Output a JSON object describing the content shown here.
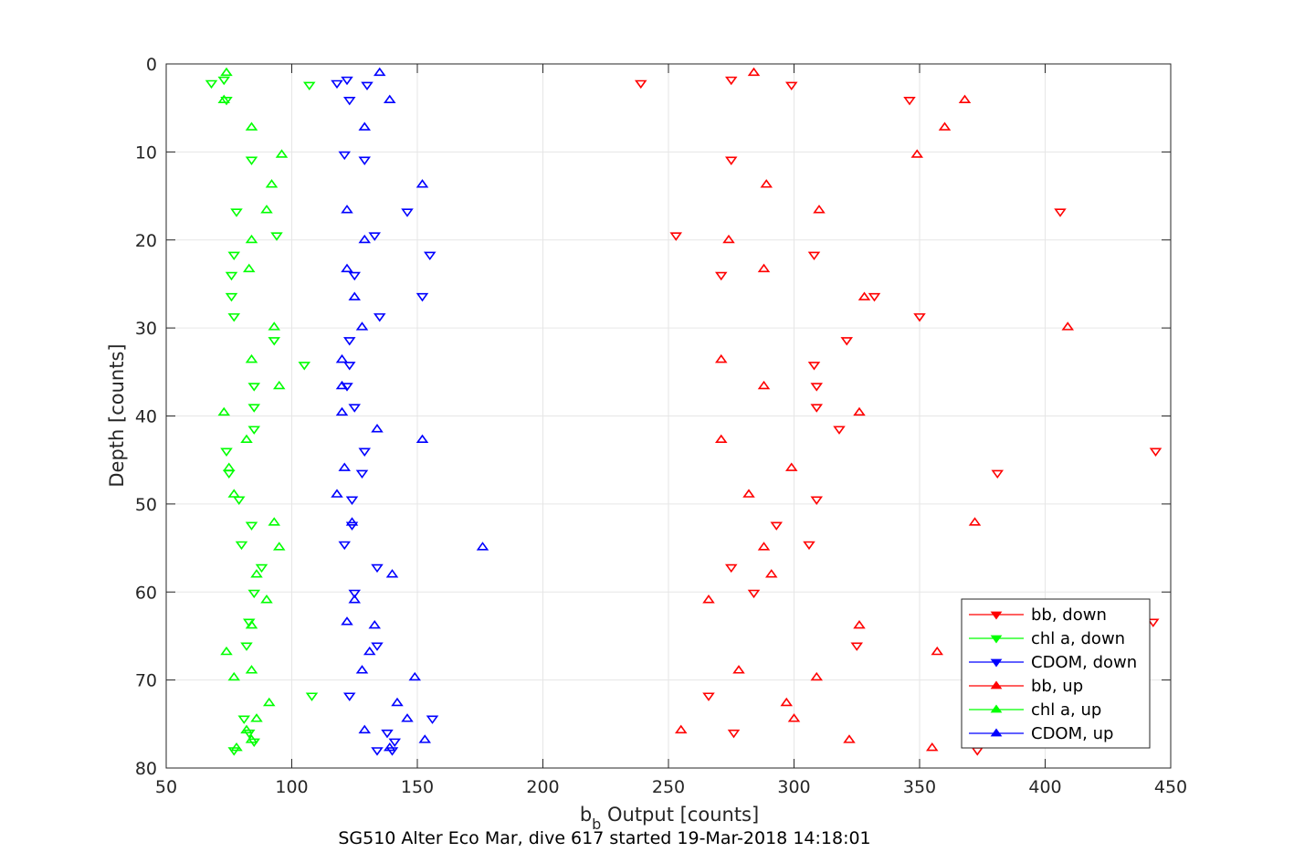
{
  "chart_data": {
    "type": "scatter",
    "title": "",
    "xlabel": "b_b Output [counts]",
    "xlabel_main": "b",
    "xlabel_sub": "b",
    "xlabel_rest": " Output [counts]",
    "ylabel": "Depth [counts]",
    "caption": "SG510 Alter Eco Mar, dive 617 started 19-Mar-2018 14:18:01",
    "xlim": [
      50,
      450
    ],
    "ylim": [
      0,
      80
    ],
    "y_reversed": true,
    "grid": true,
    "legend_position": "bottom-right",
    "xticks": [
      "50",
      "100",
      "150",
      "200",
      "250",
      "300",
      "350",
      "400",
      "450"
    ],
    "yticks": [
      "0",
      "10",
      "20",
      "30",
      "40",
      "50",
      "60",
      "70",
      "80"
    ],
    "series": [
      {
        "name": "bb, down",
        "color": "#ff0000",
        "marker": "triangle-down",
        "points": [
          [
            239,
            2.2
          ],
          [
            275,
            1.8
          ],
          [
            299,
            2.4
          ],
          [
            346,
            4.1
          ],
          [
            275,
            10.9
          ],
          [
            406,
            16.8
          ],
          [
            253,
            19.5
          ],
          [
            308,
            21.7
          ],
          [
            271,
            24
          ],
          [
            332,
            26.4
          ],
          [
            350,
            28.7
          ],
          [
            321,
            31.4
          ],
          [
            308,
            34.2
          ],
          [
            309,
            36.6
          ],
          [
            309,
            39
          ],
          [
            318,
            41.5
          ],
          [
            444,
            44
          ],
          [
            381,
            46.5
          ],
          [
            309,
            49.5
          ],
          [
            293,
            52.4
          ],
          [
            306,
            54.6
          ],
          [
            275,
            57.2
          ],
          [
            284,
            60.1
          ],
          [
            443,
            63.4
          ],
          [
            325,
            66.1
          ],
          [
            266,
            71.8
          ],
          [
            276,
            76
          ],
          [
            373,
            78
          ]
        ]
      },
      {
        "name": "chl a, down",
        "color": "#00ff00",
        "marker": "triangle-down",
        "points": [
          [
            68,
            2.2
          ],
          [
            73,
            1.8
          ],
          [
            107,
            2.4
          ],
          [
            74,
            4.1
          ],
          [
            84,
            10.9
          ],
          [
            78,
            16.8
          ],
          [
            94,
            19.5
          ],
          [
            77,
            21.7
          ],
          [
            76,
            24
          ],
          [
            76,
            26.4
          ],
          [
            77,
            28.7
          ],
          [
            93,
            31.4
          ],
          [
            105,
            34.2
          ],
          [
            85,
            36.6
          ],
          [
            85,
            39
          ],
          [
            85,
            41.5
          ],
          [
            74,
            44
          ],
          [
            75,
            46.5
          ],
          [
            79,
            49.5
          ],
          [
            84,
            52.4
          ],
          [
            80,
            54.6
          ],
          [
            88,
            57.2
          ],
          [
            85,
            60.1
          ],
          [
            83,
            63.4
          ],
          [
            82,
            66.1
          ],
          [
            108,
            71.8
          ],
          [
            81,
            74.4
          ],
          [
            83,
            76
          ],
          [
            85,
            77
          ],
          [
            77,
            78
          ]
        ]
      },
      {
        "name": "CDOM, down",
        "color": "#0000ff",
        "marker": "triangle-down",
        "points": [
          [
            118,
            2.2
          ],
          [
            122,
            1.8
          ],
          [
            130,
            2.4
          ],
          [
            123,
            4.1
          ],
          [
            121,
            10.3
          ],
          [
            129,
            10.9
          ],
          [
            146,
            16.8
          ],
          [
            133,
            19.5
          ],
          [
            155,
            21.7
          ],
          [
            125,
            24
          ],
          [
            152,
            26.4
          ],
          [
            135,
            28.7
          ],
          [
            123,
            31.4
          ],
          [
            123,
            34.2
          ],
          [
            122,
            36.6
          ],
          [
            125,
            39
          ],
          [
            129,
            44
          ],
          [
            128,
            46.5
          ],
          [
            124,
            49.5
          ],
          [
            124,
            52.4
          ],
          [
            121,
            54.6
          ],
          [
            134,
            57.2
          ],
          [
            125,
            60.1
          ],
          [
            134,
            66.1
          ],
          [
            123,
            71.8
          ],
          [
            156,
            74.4
          ],
          [
            138,
            76
          ],
          [
            141,
            77
          ],
          [
            134,
            78
          ],
          [
            140,
            78
          ]
        ]
      },
      {
        "name": "bb, up",
        "color": "#ff0000",
        "marker": "triangle-up",
        "points": [
          [
            284,
            1
          ],
          [
            368,
            4.1
          ],
          [
            360,
            7.2
          ],
          [
            349,
            10.3
          ],
          [
            289,
            13.7
          ],
          [
            310,
            16.6
          ],
          [
            274,
            20
          ],
          [
            288,
            23.3
          ],
          [
            328,
            26.5
          ],
          [
            409,
            29.9
          ],
          [
            271,
            33.6
          ],
          [
            288,
            36.6
          ],
          [
            326,
            39.6
          ],
          [
            271,
            42.7
          ],
          [
            299,
            45.9
          ],
          [
            282,
            48.9
          ],
          [
            372,
            52.1
          ],
          [
            288,
            54.9
          ],
          [
            291,
            58
          ],
          [
            266,
            60.9
          ],
          [
            326,
            63.8
          ],
          [
            357,
            66.8
          ],
          [
            278,
            68.9
          ],
          [
            309,
            69.7
          ],
          [
            297,
            72.6
          ],
          [
            300,
            74.4
          ],
          [
            255,
            75.7
          ],
          [
            322,
            76.8
          ],
          [
            355,
            77.7
          ]
        ]
      },
      {
        "name": "chl a, up",
        "color": "#00ff00",
        "marker": "triangle-up",
        "points": [
          [
            74,
            1
          ],
          [
            73,
            4.1
          ],
          [
            84,
            7.2
          ],
          [
            96,
            10.3
          ],
          [
            92,
            13.7
          ],
          [
            90,
            16.6
          ],
          [
            84,
            20
          ],
          [
            83,
            23.3
          ],
          [
            93,
            29.9
          ],
          [
            84,
            33.6
          ],
          [
            95,
            36.6
          ],
          [
            73,
            39.6
          ],
          [
            82,
            42.7
          ],
          [
            75,
            45.9
          ],
          [
            77,
            48.9
          ],
          [
            93,
            52.1
          ],
          [
            95,
            54.9
          ],
          [
            86,
            58
          ],
          [
            90,
            60.9
          ],
          [
            84,
            63.8
          ],
          [
            74,
            66.8
          ],
          [
            84,
            68.9
          ],
          [
            77,
            69.7
          ],
          [
            91,
            72.6
          ],
          [
            86,
            74.4
          ],
          [
            82,
            75.7
          ],
          [
            84,
            76.8
          ],
          [
            78,
            77.7
          ]
        ]
      },
      {
        "name": "CDOM, up",
        "color": "#0000ff",
        "marker": "triangle-up",
        "points": [
          [
            135,
            1
          ],
          [
            139,
            4.1
          ],
          [
            129,
            7.2
          ],
          [
            152,
            13.7
          ],
          [
            122,
            16.6
          ],
          [
            129,
            20
          ],
          [
            122,
            23.3
          ],
          [
            125,
            26.5
          ],
          [
            128,
            29.9
          ],
          [
            120,
            33.6
          ],
          [
            120,
            36.6
          ],
          [
            120,
            39.6
          ],
          [
            134,
            41.5
          ],
          [
            152,
            42.7
          ],
          [
            121,
            45.9
          ],
          [
            118,
            48.9
          ],
          [
            124,
            52.1
          ],
          [
            176,
            54.9
          ],
          [
            140,
            58
          ],
          [
            125,
            60.9
          ],
          [
            122,
            63.4
          ],
          [
            133,
            63.8
          ],
          [
            131,
            66.8
          ],
          [
            128,
            68.9
          ],
          [
            149,
            69.7
          ],
          [
            142,
            72.6
          ],
          [
            146,
            74.4
          ],
          [
            129,
            75.7
          ],
          [
            153,
            76.8
          ],
          [
            139,
            77.7
          ]
        ]
      }
    ]
  }
}
